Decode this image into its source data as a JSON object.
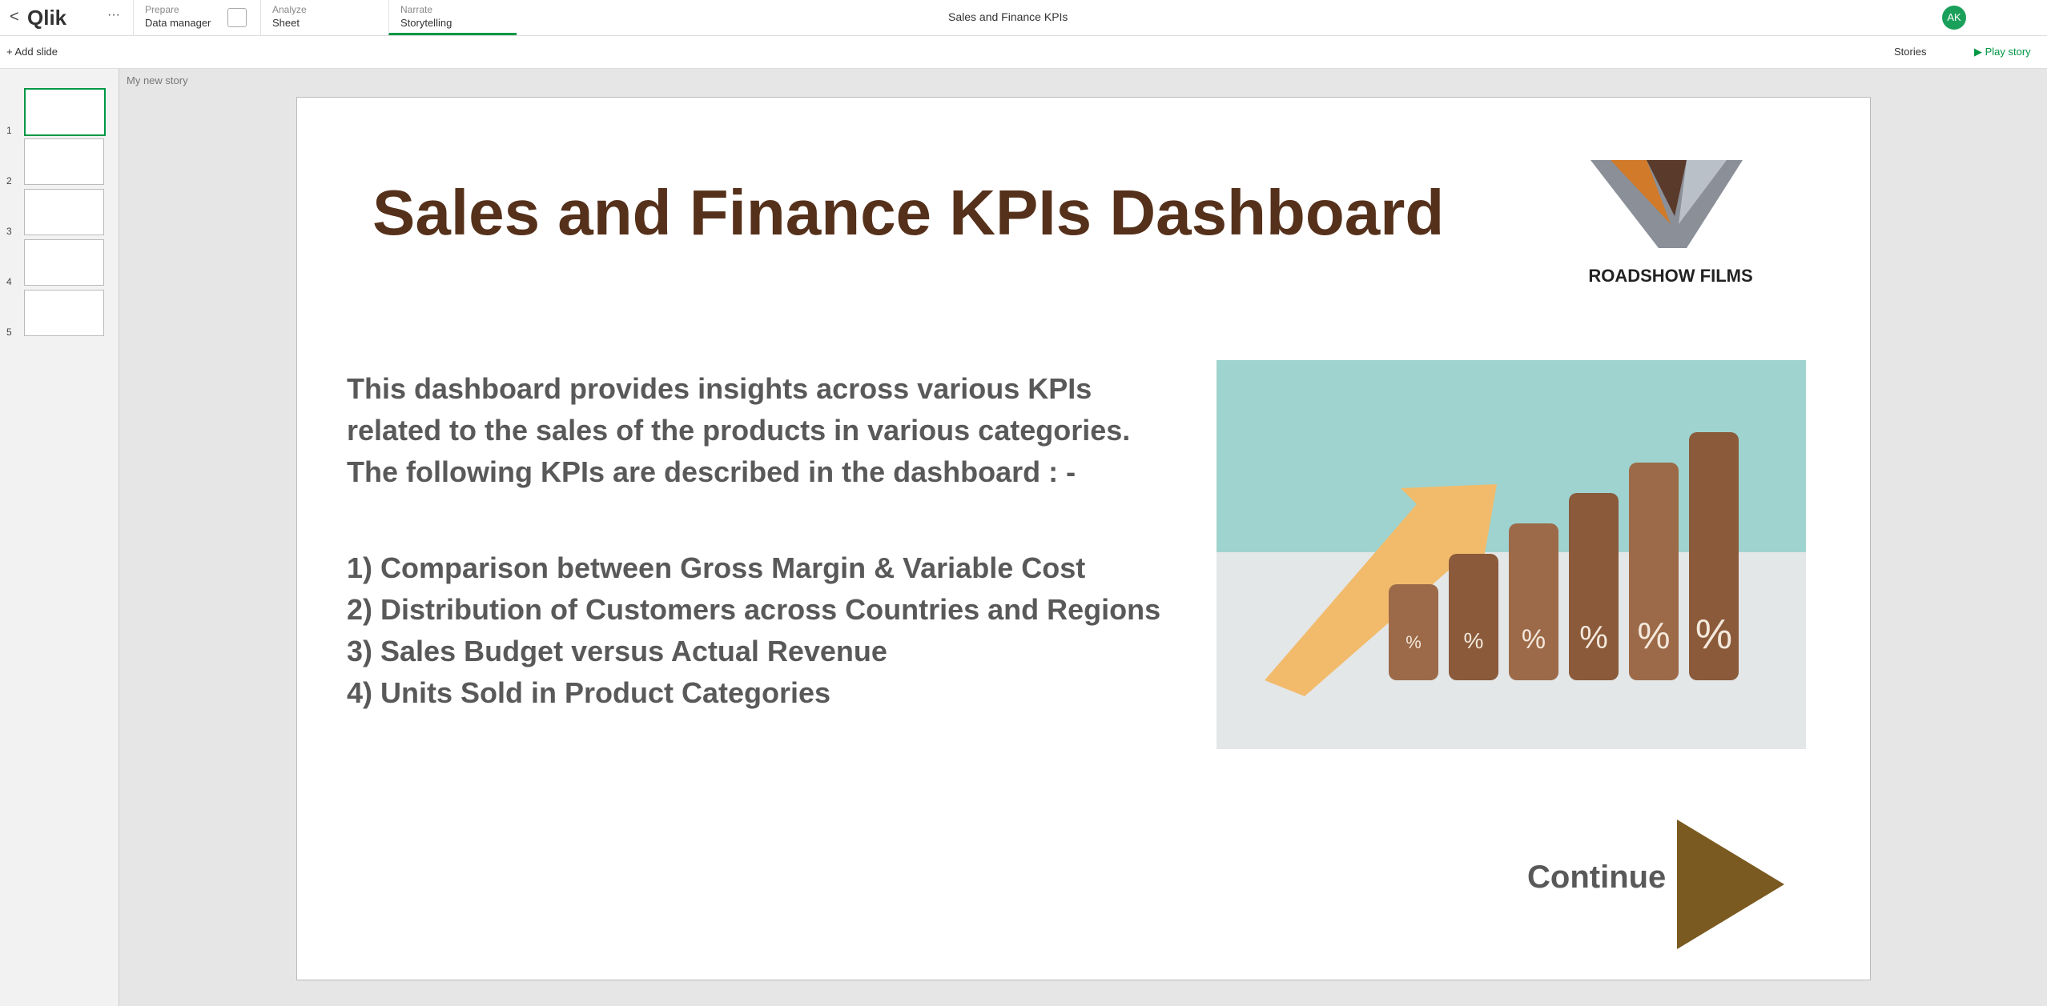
{
  "header": {
    "back": "<",
    "brand": "Qlik",
    "menu": "···",
    "tabs": [
      {
        "label": "Prepare",
        "value": "Data manager"
      },
      {
        "label": "Analyze",
        "value": "Sheet"
      },
      {
        "label": "Narrate",
        "value": "Storytelling"
      }
    ],
    "app_title": "Sales and Finance KPIs",
    "user": "AK"
  },
  "toolbar": {
    "add_slide": "Add slide",
    "stories": "Stories",
    "play": "Play story"
  },
  "story_name": "My new story",
  "thumbnails": [
    "1",
    "2",
    "3",
    "4",
    "5"
  ],
  "slide": {
    "title": "Sales and Finance KPIs Dashboard",
    "logo": "ROADSHOW FILMS",
    "intro": [
      "This dashboard provides insights across various KPIs",
      "related to the sales of the products in various categories.",
      "The following KPIs are described in the dashboard : -"
    ],
    "kpis": [
      "1) Comparison between Gross Margin & Variable Cost",
      "2) Distribution of Customers across Countries and Regions",
      "3) Sales Budget versus Actual Revenue",
      "4) Units Sold in Product Categories"
    ],
    "image_labels": [
      "%",
      "%",
      "%",
      "%",
      "%",
      "%"
    ],
    "continue": "Continue"
  }
}
